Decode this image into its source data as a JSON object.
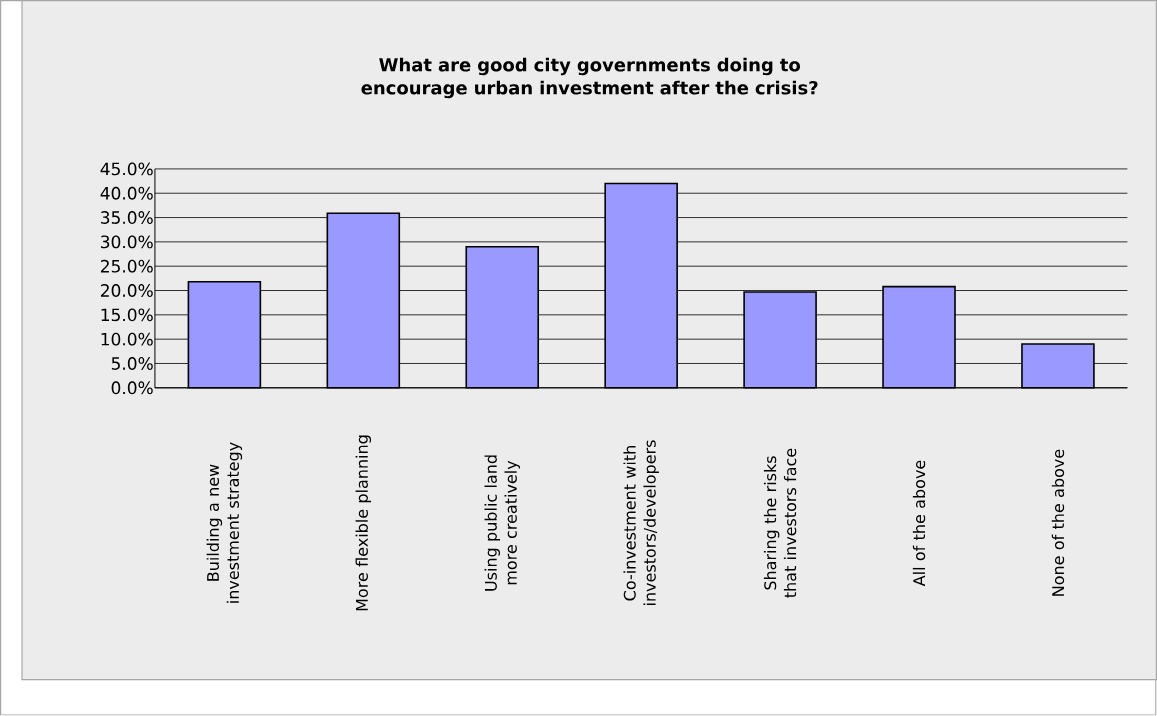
{
  "chart_data": {
    "type": "bar",
    "title": "What are good city governments doing to encourage urban investment after the crisis?",
    "categories": [
      "Building a new investment strategy",
      "More flexible planning",
      "Using public land more creatively",
      "Co-investment with investors/developers",
      "Sharing the risks that investors face",
      "All of the above",
      "None of the above"
    ],
    "values": [
      21.8,
      35.9,
      29.0,
      42.0,
      19.7,
      20.8,
      9.0
    ],
    "color": "#9999ff",
    "ylim": [
      0,
      45
    ],
    "yticks": [
      {
        "value": 0,
        "label": "0.0%"
      },
      {
        "value": 5,
        "label": "5.0%"
      },
      {
        "value": 10,
        "label": "10.0%"
      },
      {
        "value": 15,
        "label": "15.0%"
      },
      {
        "value": 20,
        "label": "20.0%"
      },
      {
        "value": 25,
        "label": "25.0%"
      },
      {
        "value": 30,
        "label": "30.0%"
      },
      {
        "value": 35,
        "label": "35.0%"
      },
      {
        "value": 40,
        "label": "40.0%"
      },
      {
        "value": 45,
        "label": "45.0%"
      }
    ],
    "grid": "y"
  }
}
